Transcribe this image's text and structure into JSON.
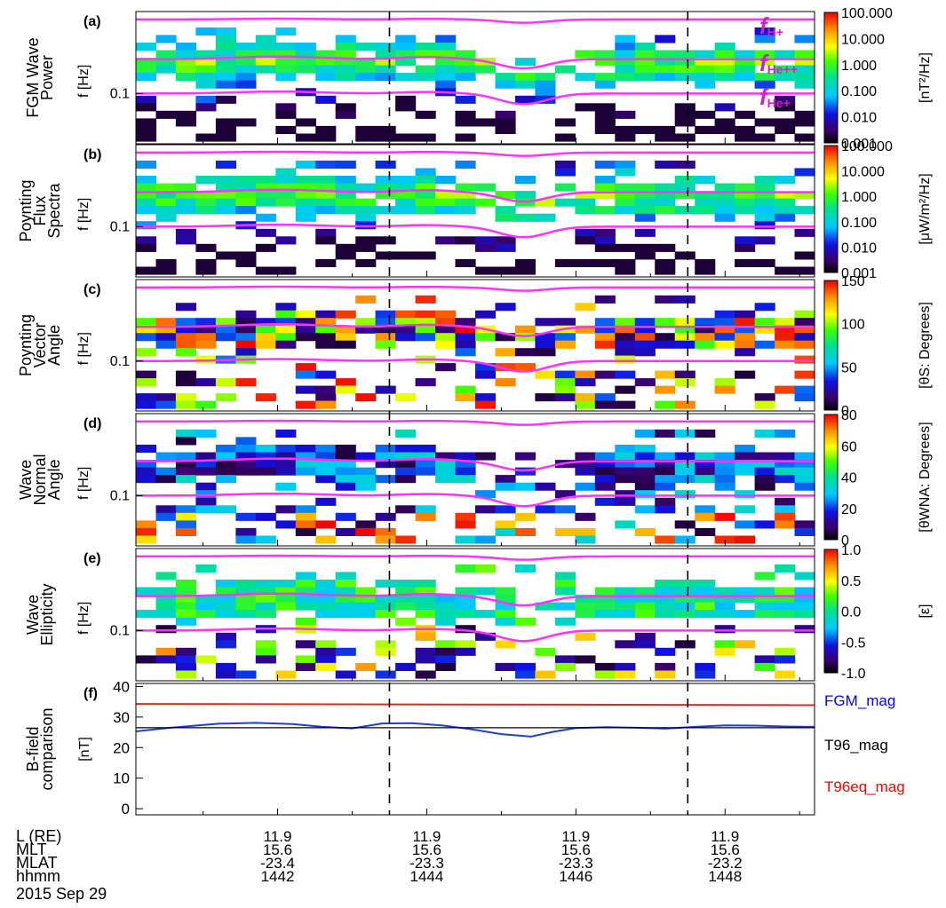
{
  "colors": {
    "gyro_line": "#ff33ff",
    "gyro_label": "#cc22cc",
    "fgm_line": "#1f3fcc",
    "t96_line": "#000000",
    "t96eq_line": "#ee2211",
    "fgm_legend": "#0000ff",
    "t96eq_legend": "#ff0000"
  },
  "chart_data": [
    {
      "type": "heatmap",
      "panel_label": "(a)",
      "ylabel_lines": [
        "FGM Wave",
        "Power"
      ],
      "yunit": "f [Hz]",
      "ytick": "0.1",
      "cbar_labels": [
        "100.000",
        "10.000",
        "1.000",
        "0.100",
        "0.010",
        "0.001"
      ],
      "cbar_title": "[nT²/Hz]",
      "cmap": "log",
      "curve_labels": [
        {
          "main": "f",
          "sub": "H+"
        },
        {
          "main": "f",
          "sub": "He++"
        },
        {
          "main": "f",
          "sub": "He+"
        }
      ]
    },
    {
      "type": "heatmap",
      "panel_label": "(b)",
      "ylabel_lines": [
        "Poynting",
        "Flux",
        "Spectra"
      ],
      "yunit": "f [Hz]",
      "ytick": "0.1",
      "cbar_labels": [
        "100.000",
        "10.000",
        "1.000",
        "0.100",
        "0.010",
        "0.001"
      ],
      "cbar_title": "[μW/m²/Hz]",
      "cmap": "log"
    },
    {
      "type": "heatmap",
      "panel_label": "(c)",
      "ylabel_lines": [
        "Poynting",
        "Vector",
        "Angle"
      ],
      "yunit": "f [Hz]",
      "ytick": "0.1",
      "cbar_labels": [
        "150",
        "100",
        "50",
        "0"
      ],
      "cbar_title": "[θS: Degrees]",
      "cmap": "angle180"
    },
    {
      "type": "heatmap",
      "panel_label": "(d)",
      "ylabel_lines": [
        "Wave",
        "Normal",
        "Angle"
      ],
      "yunit": "f [Hz]",
      "ytick": "0.1",
      "cbar_labels": [
        "80",
        "60",
        "40",
        "20",
        "0"
      ],
      "cbar_title": "[θWNA: Degrees]",
      "cmap": "angle90"
    },
    {
      "type": "heatmap",
      "panel_label": "(e)",
      "ylabel_lines": [
        "Wave",
        "Ellipticity"
      ],
      "yunit": "f [Hz]",
      "ytick": "0.1",
      "cbar_labels": [
        "1.0",
        "0.5",
        "0.0",
        "-0.5",
        "-1.0"
      ],
      "cbar_title": "[ε]",
      "cmap": "ellip"
    },
    {
      "type": "line",
      "panel_label": "(f)",
      "ylabel_lines": [
        "B-field",
        "comparison"
      ],
      "yunit": "[nT]",
      "ylim": [
        -2,
        41
      ],
      "yticks": [
        0,
        10,
        20,
        30,
        40
      ],
      "xlim": [
        1440.1,
        1449.2
      ],
      "series": [
        {
          "name": "FGM_mag",
          "color": "#1f3fcc",
          "x": [
            1440.1,
            1440.6,
            1441.2,
            1441.7,
            1442.2,
            1442.6,
            1443.0,
            1443.4,
            1443.8,
            1444.2,
            1444.6,
            1445.0,
            1445.4,
            1445.7,
            1446.0,
            1446.4,
            1446.8,
            1447.2,
            1447.6,
            1448.0,
            1448.4,
            1448.8,
            1449.2
          ],
          "values": [
            25.3,
            26.6,
            27.8,
            28.1,
            27.7,
            26.8,
            26.3,
            27.9,
            28.0,
            27.3,
            26.0,
            24.4,
            23.6,
            25.2,
            26.4,
            26.7,
            26.5,
            26.2,
            26.8,
            27.3,
            27.2,
            26.9,
            26.8
          ]
        },
        {
          "name": "T96_mag",
          "color": "#000000",
          "x": [
            1440.1,
            1449.2
          ],
          "values": [
            26.5,
            26.5
          ]
        },
        {
          "name": "T96eq_mag",
          "color": "#ee2211",
          "x": [
            1440.1,
            1449.2
          ],
          "values": [
            34.3,
            33.9
          ]
        }
      ]
    }
  ],
  "legend": [
    "FGM_mag",
    "T96_mag",
    "T96eq_mag"
  ],
  "ephemeris": {
    "row_labels": [
      "L (RE)",
      "MLT",
      "MLAT",
      "hhmm"
    ],
    "columns": [
      {
        "time": 1442,
        "values": [
          "11.9",
          "15.6",
          "-23.4",
          "1442"
        ]
      },
      {
        "time": 1444,
        "values": [
          "11.9",
          "15.6",
          "-23.3",
          "1444"
        ]
      },
      {
        "time": 1446,
        "values": [
          "11.9",
          "15.6",
          "-23.3",
          "1446"
        ]
      },
      {
        "time": 1448,
        "values": [
          "11.9",
          "15.6",
          "-23.2",
          "1448"
        ]
      }
    ],
    "date": "2015 Sep 29"
  },
  "time_axis": {
    "xlim": [
      1440.1,
      1449.2
    ],
    "dashed_times": [
      1443.5,
      1447.5
    ]
  }
}
